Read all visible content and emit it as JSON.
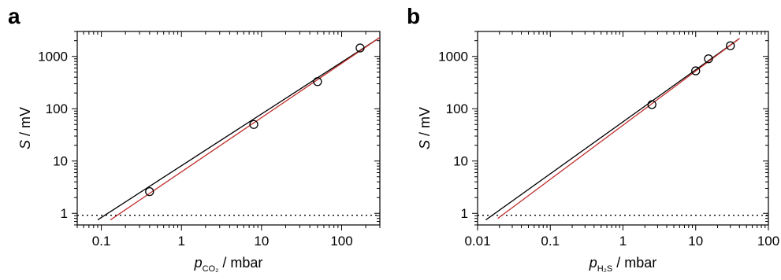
{
  "chart_data": [
    {
      "type": "scatter",
      "panel_label": "a",
      "x_scale": "log",
      "y_scale": "log",
      "xlim": [
        0.05,
        300
      ],
      "ylim": [
        0.6,
        3000
      ],
      "x_ticks": [
        0.1,
        1,
        10,
        100
      ],
      "x_tick_labels": [
        "0.1",
        "1",
        "10",
        "100"
      ],
      "y_ticks": [
        1,
        10,
        100,
        1000
      ],
      "y_tick_labels": [
        "1",
        "10",
        "100",
        "1000"
      ],
      "xlabel": {
        "symbol": "p",
        "subscript": "CO₂",
        "unit": " / mbar"
      },
      "ylabel": {
        "symbol": "S",
        "unit": " / mV"
      },
      "points": [
        {
          "x": 0.4,
          "y": 2.6
        },
        {
          "x": 8,
          "y": 50
        },
        {
          "x": 50,
          "y": 330
        },
        {
          "x": 170,
          "y": 1450
        }
      ],
      "fit_lines": [
        {
          "color": "#000000",
          "x": [
            0.09,
            300
          ],
          "y": [
            0.75,
            2300
          ]
        },
        {
          "color": "#c0302e",
          "x": [
            0.13,
            300
          ],
          "y": [
            0.75,
            2300
          ]
        }
      ],
      "reference_line": {
        "y": 0.92,
        "style": "dotted"
      },
      "grid": false
    },
    {
      "type": "scatter",
      "panel_label": "b",
      "x_scale": "log",
      "y_scale": "log",
      "xlim": [
        0.01,
        100
      ],
      "ylim": [
        0.6,
        3000
      ],
      "x_ticks": [
        0.01,
        0.1,
        1,
        10,
        100
      ],
      "x_tick_labels": [
        "0.01",
        "0.1",
        "1",
        "10",
        "100"
      ],
      "y_ticks": [
        1,
        10,
        100,
        1000
      ],
      "y_tick_labels": [
        "1",
        "10",
        "100",
        "1000"
      ],
      "xlabel": {
        "symbol": "p",
        "subscript": "H₂S",
        "unit": " / mbar"
      },
      "ylabel": {
        "symbol": "S",
        "unit": " / mV"
      },
      "points": [
        {
          "x": 2.5,
          "y": 120
        },
        {
          "x": 10,
          "y": 530
        },
        {
          "x": 15,
          "y": 900
        },
        {
          "x": 30,
          "y": 1600
        }
      ],
      "fit_lines": [
        {
          "color": "#000000",
          "x": [
            0.013,
            40
          ],
          "y": [
            0.75,
            2200
          ]
        },
        {
          "color": "#c0302e",
          "x": [
            0.019,
            40
          ],
          "y": [
            0.8,
            2200
          ]
        }
      ],
      "reference_line": {
        "y": 0.92,
        "style": "dotted"
      },
      "grid": false
    }
  ]
}
